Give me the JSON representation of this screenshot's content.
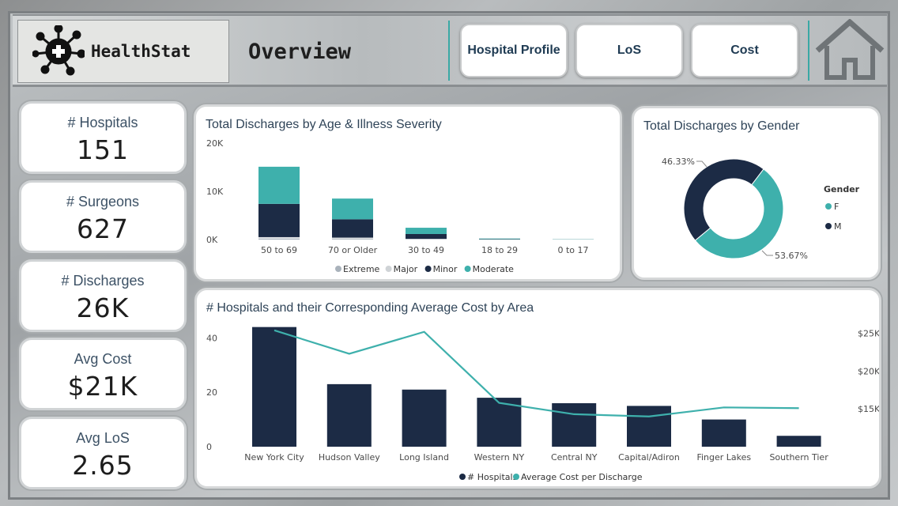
{
  "app": {
    "logo_text": "HealthStat",
    "page_title": "Overview"
  },
  "nav": {
    "hospital_profile": "Hospital Profile",
    "los": "LoS",
    "cost": "Cost"
  },
  "kpis": [
    {
      "label": "# Hospitals",
      "value": "151"
    },
    {
      "label": "# Surgeons",
      "value": "627"
    },
    {
      "label": "# Discharges",
      "value": "26K"
    },
    {
      "label": "Avg Cost",
      "value": "$21K"
    },
    {
      "label": "Avg LoS",
      "value": "2.65"
    }
  ],
  "colors": {
    "navy": "#1c2b45",
    "teal": "#3eb0ac",
    "extreme": "#a9b2bb",
    "major": "#e3e5e7"
  },
  "chart_data": [
    {
      "type": "bar",
      "stacked": true,
      "title": "Total Discharges by Age & Illness Severity",
      "categories": [
        "50 to 69",
        "70 or Older",
        "30 to 49",
        "18 to 29",
        "0 to 17"
      ],
      "y_ticks": [
        "20K",
        "10K",
        "0K"
      ],
      "ylim": [
        0,
        20000
      ],
      "series": [
        {
          "name": "Extreme",
          "values": [
            200,
            150,
            50,
            0,
            0
          ]
        },
        {
          "name": "Major",
          "values": [
            300,
            250,
            100,
            10,
            5
          ]
        },
        {
          "name": "Minor",
          "values": [
            6900,
            3800,
            1000,
            80,
            30
          ]
        },
        {
          "name": "Moderate",
          "values": [
            7700,
            4300,
            1300,
            120,
            40
          ]
        }
      ]
    },
    {
      "type": "pie",
      "donut": true,
      "title": "Total Discharges by Gender",
      "legend_title": "Gender",
      "labels": [
        "F",
        "M"
      ],
      "values": [
        53.67,
        46.33
      ],
      "data_labels": [
        "53.67%",
        "46.33%"
      ]
    },
    {
      "type": "bar",
      "combo_line": true,
      "title": "# Hospitals and their Corresponding Average Cost by Area",
      "categories": [
        "New York City",
        "Hudson Valley",
        "Long Island",
        "Western NY",
        "Central NY",
        "Capital/Adiron",
        "Finger Lakes",
        "Southern Tier"
      ],
      "series": [
        {
          "name": "# Hospitals",
          "axis": "left",
          "values": [
            44,
            23,
            21,
            18,
            16,
            15,
            10,
            4
          ]
        },
        {
          "name": "Average Cost per Discharge",
          "axis": "right",
          "values": [
            25400,
            22300,
            25200,
            15800,
            14300,
            14000,
            15200,
            15100
          ]
        }
      ],
      "y_left_ticks": [
        "40",
        "20",
        "0"
      ],
      "ylim_left": [
        0,
        50
      ],
      "y_right_ticks": [
        "$25K",
        "$20K",
        "$15K"
      ],
      "ylim_right": [
        10000,
        28000
      ]
    }
  ]
}
